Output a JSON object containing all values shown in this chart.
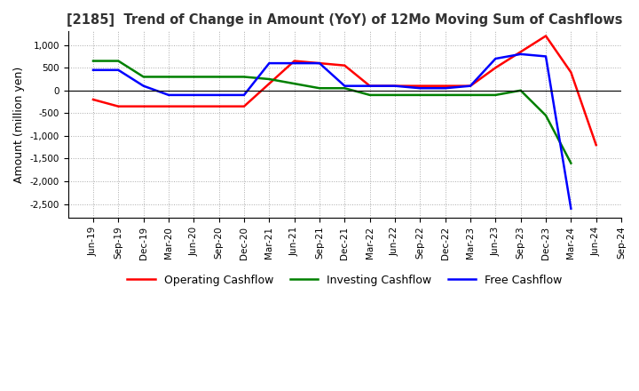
{
  "title": "[2185]  Trend of Change in Amount (YoY) of 12Mo Moving Sum of Cashflows",
  "ylabel": "Amount (million yen)",
  "x_labels": [
    "Jun-19",
    "Sep-19",
    "Dec-19",
    "Mar-20",
    "Jun-20",
    "Sep-20",
    "Dec-20",
    "Mar-21",
    "Jun-21",
    "Sep-21",
    "Dec-21",
    "Mar-22",
    "Jun-22",
    "Sep-22",
    "Dec-22",
    "Mar-23",
    "Jun-23",
    "Sep-23",
    "Dec-23",
    "Mar-24",
    "Jun-24",
    "Sep-24"
  ],
  "operating": [
    -200,
    -350,
    -350,
    -350,
    -350,
    -350,
    -350,
    150,
    650,
    600,
    550,
    100,
    100,
    100,
    100,
    100,
    500,
    850,
    1200,
    400,
    -1200,
    null
  ],
  "investing": [
    650,
    650,
    300,
    300,
    300,
    300,
    300,
    250,
    150,
    50,
    50,
    -100,
    -100,
    -100,
    -100,
    -100,
    -100,
    0,
    -550,
    -1600,
    null,
    null
  ],
  "free": [
    450,
    450,
    100,
    -100,
    -100,
    -100,
    -100,
    600,
    600,
    600,
    100,
    100,
    100,
    50,
    50,
    100,
    700,
    800,
    750,
    -2600,
    null,
    null
  ],
  "ylim": [
    -2800,
    1300
  ],
  "yticks": [
    1000,
    500,
    0,
    -500,
    -1000,
    -1500,
    -2000,
    -2500
  ],
  "colors": {
    "operating": "#ff0000",
    "investing": "#008000",
    "free": "#0000ff"
  },
  "legend_labels": [
    "Operating Cashflow",
    "Investing Cashflow",
    "Free Cashflow"
  ],
  "background_color": "#ffffff",
  "plot_bg_color": "#ffffff",
  "grid_color": "#aaaaaa",
  "title_color": "#333333"
}
